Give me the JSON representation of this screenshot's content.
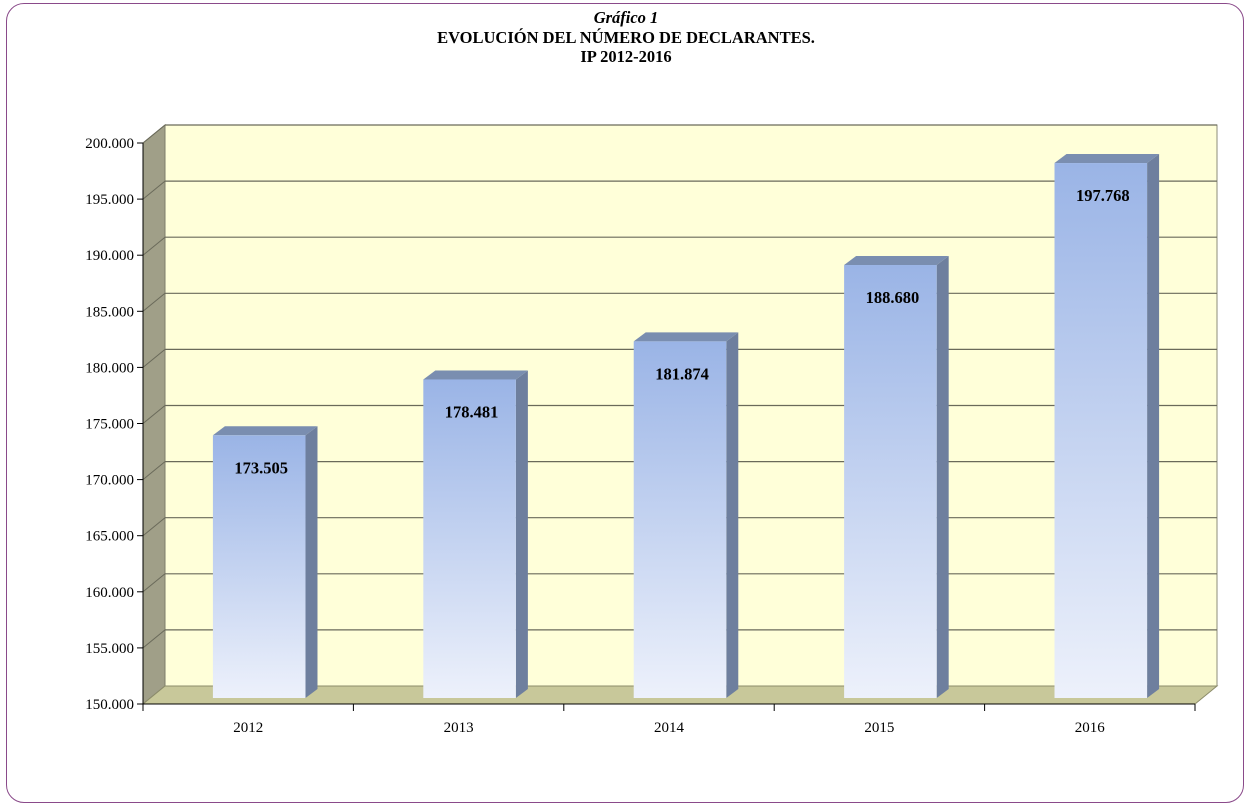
{
  "header": {
    "caption": "Gráfico 1",
    "title": "EVOLUCIÓN  DEL NÚMERO DE DECLARANTES.",
    "subtitle": "IP  2012-2016"
  },
  "colors": {
    "wall": "#FFFFD9",
    "floor": "#C8C89A",
    "left_wall": "#A09F88",
    "bar_top": "#9AB4E6",
    "bar_bottom": "#EDF1FB",
    "bar_side": "#6E7F9E",
    "bar_cap": "#7A8EB0",
    "frame": "#8A4A8A"
  },
  "chart_data": {
    "type": "bar",
    "categories": [
      "2012",
      "2013",
      "2014",
      "2015",
      "2016"
    ],
    "values": [
      173505,
      178481,
      181874,
      188680,
      197768
    ],
    "value_labels": [
      "173.505",
      "178.481",
      "181.874",
      "188.680",
      "197.768"
    ],
    "ylim": [
      150000,
      200000
    ],
    "yticks": [
      150000,
      155000,
      160000,
      165000,
      170000,
      175000,
      180000,
      185000,
      190000,
      195000,
      200000
    ],
    "ytick_labels": [
      "150.000",
      "155.000",
      "160.000",
      "165.000",
      "170.000",
      "175.000",
      "180.000",
      "185.000",
      "190.000",
      "195.000",
      "200.000"
    ],
    "grid": true,
    "legend": "none",
    "style": "3d-bar"
  }
}
